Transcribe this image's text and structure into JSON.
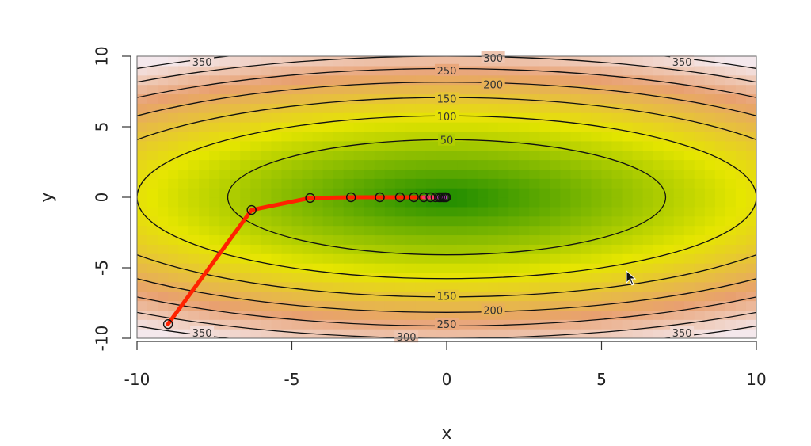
{
  "chart_data": {
    "type": "contour",
    "xlabel": "x",
    "ylabel": "y",
    "xlim": [
      -10,
      10
    ],
    "ylim": [
      -10,
      10
    ],
    "x_ticks": [
      "-10",
      "-5",
      "0",
      "5",
      "10"
    ],
    "y_ticks": [
      "-10",
      "-5",
      "0",
      "5",
      "10"
    ],
    "contour_levels": [
      50,
      100,
      150,
      200,
      250,
      300,
      350
    ],
    "contour_labels": [
      {
        "text": "50",
        "x": 0,
        "y": 4.06
      },
      {
        "text": "100",
        "x": 0,
        "y": 5.74
      },
      {
        "text": "150",
        "x": 0,
        "y": 7.0
      },
      {
        "text": "250",
        "x": 0,
        "y": 9.0
      },
      {
        "text": "200",
        "x": 1.5,
        "y": 8.0
      },
      {
        "text": "300",
        "x": 1.5,
        "y": 9.9
      },
      {
        "text": "350",
        "x": -7.9,
        "y": 9.6
      },
      {
        "text": "350",
        "x": 7.6,
        "y": 9.6
      },
      {
        "text": "150",
        "x": 0,
        "y": -7.0
      },
      {
        "text": "200",
        "x": 1.5,
        "y": -8.0
      },
      {
        "text": "250",
        "x": 0,
        "y": -9.0
      },
      {
        "text": "300",
        "x": -1.3,
        "y": -9.9
      },
      {
        "text": "350",
        "x": -7.9,
        "y": -9.6
      },
      {
        "text": "350",
        "x": 7.6,
        "y": -9.6
      }
    ],
    "colors": {
      "low": "#1a8a00",
      "mid": "#e6e600",
      "high": "#e8a070",
      "top": "#f4e8ec",
      "path": "#ff2200",
      "path_end": "#d040d0"
    },
    "path_points": [
      {
        "x": -9,
        "y": -9
      },
      {
        "x": -6.3,
        "y": -0.9
      },
      {
        "x": -4.41,
        "y": -0.05
      },
      {
        "x": -3.09,
        "y": 0
      },
      {
        "x": -2.16,
        "y": 0
      },
      {
        "x": -1.51,
        "y": 0
      },
      {
        "x": -1.06,
        "y": 0
      },
      {
        "x": -0.74,
        "y": 0
      },
      {
        "x": -0.52,
        "y": 0
      },
      {
        "x": -0.36,
        "y": 0
      },
      {
        "x": -0.25,
        "y": 0
      },
      {
        "x": -0.18,
        "y": 0
      },
      {
        "x": -0.12,
        "y": 0
      },
      {
        "x": -0.06,
        "y": 0
      },
      {
        "x": -0.02,
        "y": 0
      }
    ]
  }
}
